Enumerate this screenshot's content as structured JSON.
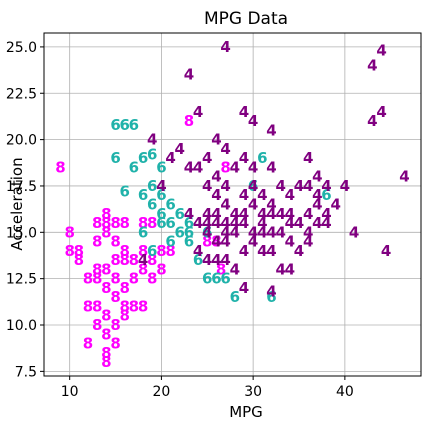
{
  "chart_data": {
    "type": "scatter",
    "title": "MPG Data",
    "xlabel": "MPG",
    "ylabel": "Acceleration",
    "xlim": [
      7.2,
      48.3
    ],
    "ylim": [
      7.25,
      25.75
    ],
    "xticks": [
      10,
      20,
      30,
      40
    ],
    "yticks": [
      7.5,
      10.0,
      12.5,
      15.0,
      17.5,
      20.0,
      22.5,
      25.0
    ],
    "xtick_labels": [
      "10",
      "20",
      "30",
      "40"
    ],
    "ytick_labels": [
      "7.5",
      "10.0",
      "12.5",
      "15.0",
      "17.5",
      "20.0",
      "22.5",
      "25.0"
    ],
    "grid": true,
    "marker_style": "text labels showing cylinder count",
    "series": [
      {
        "label": "8",
        "color": "#ff00ff",
        "points": [
          [
            9.0,
            18.5
          ],
          [
            10.0,
            15.0
          ],
          [
            10.0,
            14.0
          ],
          [
            11.0,
            14.0
          ],
          [
            11.0,
            13.5
          ],
          [
            12.0,
            12.5
          ],
          [
            12.0,
            11.0
          ],
          [
            12.0,
            9.0
          ],
          [
            13.0,
            15.5
          ],
          [
            13.0,
            14.5
          ],
          [
            13.0,
            13.0
          ],
          [
            13.0,
            12.5
          ],
          [
            13.0,
            11.0
          ],
          [
            13.0,
            10.0
          ],
          [
            14.0,
            16.0
          ],
          [
            14.0,
            15.5
          ],
          [
            14.0,
            15.0
          ],
          [
            14.0,
            13.0
          ],
          [
            14.0,
            12.0
          ],
          [
            14.0,
            10.5
          ],
          [
            14.0,
            9.5
          ],
          [
            14.0,
            8.5
          ],
          [
            14.0,
            8.0
          ],
          [
            15.0,
            15.5
          ],
          [
            15.0,
            14.5
          ],
          [
            15.0,
            13.5
          ],
          [
            15.0,
            12.5
          ],
          [
            15.0,
            11.5
          ],
          [
            15.0,
            10.0
          ],
          [
            15.0,
            9.0
          ],
          [
            16.0,
            15.5
          ],
          [
            16.0,
            14.0
          ],
          [
            16.0,
            13.5
          ],
          [
            16.0,
            12.0
          ],
          [
            16.0,
            11.0
          ],
          [
            16.0,
            10.5
          ],
          [
            17.0,
            13.5
          ],
          [
            17.0,
            12.5
          ],
          [
            17.0,
            11.0
          ],
          [
            18.0,
            15.5
          ],
          [
            18.0,
            14.0
          ],
          [
            18.0,
            13.0
          ],
          [
            18.0,
            11.0
          ],
          [
            19.0,
            15.5
          ],
          [
            19.0,
            13.5
          ],
          [
            19.0,
            12.5
          ],
          [
            20.0,
            14.0
          ],
          [
            20.0,
            13.0
          ],
          [
            21.0,
            14.0
          ],
          [
            23.0,
            21.0
          ],
          [
            25.0,
            14.5
          ],
          [
            26.0,
            14.5
          ],
          [
            26.5,
            13.0
          ],
          [
            27.0,
            18.5
          ]
        ]
      },
      {
        "label": "6",
        "color": "#20b2aa",
        "points": [
          [
            15.0,
            20.8
          ],
          [
            16.0,
            20.8
          ],
          [
            17.0,
            20.8
          ],
          [
            15.0,
            19.0
          ],
          [
            16.0,
            17.2
          ],
          [
            17.0,
            18.5
          ],
          [
            18.0,
            19.0
          ],
          [
            18.0,
            17.0
          ],
          [
            18.0,
            15.0
          ],
          [
            19.0,
            19.2
          ],
          [
            19.0,
            17.5
          ],
          [
            19.0,
            16.5
          ],
          [
            19.0,
            14.0
          ],
          [
            20.0,
            18.5
          ],
          [
            20.0,
            17.0
          ],
          [
            20.0,
            16.0
          ],
          [
            20.0,
            15.5
          ],
          [
            21.0,
            16.5
          ],
          [
            21.0,
            15.5
          ],
          [
            21.0,
            14.5
          ],
          [
            22.0,
            16.0
          ],
          [
            22.0,
            15.0
          ],
          [
            23.0,
            15.5
          ],
          [
            23.0,
            14.5
          ],
          [
            23.0,
            15.0
          ],
          [
            24.0,
            13.5
          ],
          [
            25.0,
            15.0
          ],
          [
            25.0,
            12.5
          ],
          [
            26.0,
            12.5
          ],
          [
            27.0,
            12.5
          ],
          [
            28.0,
            11.5
          ],
          [
            30.0,
            17.5
          ],
          [
            31.0,
            19.0
          ],
          [
            32.0,
            11.5
          ],
          [
            38.0,
            17.0
          ]
        ]
      },
      {
        "label": "4",
        "color": "#800080",
        "points": [
          [
            18.0,
            13.5
          ],
          [
            19.0,
            20.0
          ],
          [
            20.0,
            17.5
          ],
          [
            21.0,
            19.0
          ],
          [
            22.0,
            19.5
          ],
          [
            23.0,
            23.5
          ],
          [
            23.0,
            18.5
          ],
          [
            23.0,
            16.0
          ],
          [
            24.0,
            21.5
          ],
          [
            24.0,
            18.5
          ],
          [
            24.0,
            15.5
          ],
          [
            24.0,
            14.0
          ],
          [
            25.0,
            19.0
          ],
          [
            25.0,
            17.5
          ],
          [
            25.0,
            16.0
          ],
          [
            25.0,
            15.5
          ],
          [
            25.0,
            15.0
          ],
          [
            25.0,
            13.5
          ],
          [
            26.0,
            20.0
          ],
          [
            26.0,
            18.0
          ],
          [
            26.0,
            17.0
          ],
          [
            26.0,
            16.0
          ],
          [
            26.0,
            15.5
          ],
          [
            26.0,
            14.5
          ],
          [
            26.0,
            13.5
          ],
          [
            27.0,
            25.0
          ],
          [
            27.0,
            19.5
          ],
          [
            27.0,
            17.5
          ],
          [
            27.0,
            16.5
          ],
          [
            27.0,
            15.5
          ],
          [
            27.0,
            15.0
          ],
          [
            27.0,
            14.5
          ],
          [
            27.0,
            13.5
          ],
          [
            28.0,
            18.5
          ],
          [
            28.0,
            16.0
          ],
          [
            28.0,
            15.5
          ],
          [
            28.0,
            15.0
          ],
          [
            28.0,
            13.0
          ],
          [
            29.0,
            21.5
          ],
          [
            29.0,
            19.0
          ],
          [
            29.0,
            17.0
          ],
          [
            29.0,
            16.0
          ],
          [
            29.0,
            15.5
          ],
          [
            29.0,
            14.0
          ],
          [
            29.0,
            12.0
          ],
          [
            30.0,
            21.0
          ],
          [
            30.0,
            18.5
          ],
          [
            30.0,
            17.5
          ],
          [
            30.0,
            16.5
          ],
          [
            30.0,
            15.0
          ],
          [
            30.0,
            14.5
          ],
          [
            31.0,
            17.0
          ],
          [
            31.0,
            16.0
          ],
          [
            31.0,
            15.5
          ],
          [
            31.0,
            15.0
          ],
          [
            31.0,
            14.0
          ],
          [
            32.0,
            20.5
          ],
          [
            32.0,
            18.5
          ],
          [
            32.0,
            16.5
          ],
          [
            32.0,
            16.0
          ],
          [
            32.0,
            15.0
          ],
          [
            32.0,
            14.0
          ],
          [
            32.0,
            11.8
          ],
          [
            33.0,
            17.5
          ],
          [
            33.0,
            16.0
          ],
          [
            33.0,
            15.0
          ],
          [
            33.0,
            13.0
          ],
          [
            34.0,
            17.0
          ],
          [
            34.0,
            16.0
          ],
          [
            34.0,
            15.5
          ],
          [
            34.0,
            14.5
          ],
          [
            34.0,
            13.0
          ],
          [
            35.0,
            17.5
          ],
          [
            35.0,
            15.5
          ],
          [
            35.0,
            14.0
          ],
          [
            36.0,
            19.0
          ],
          [
            36.0,
            17.5
          ],
          [
            36.0,
            16.0
          ],
          [
            36.0,
            15.0
          ],
          [
            36.0,
            14.5
          ],
          [
            37.0,
            18.0
          ],
          [
            37.0,
            17.0
          ],
          [
            37.0,
            16.5
          ],
          [
            37.0,
            15.5
          ],
          [
            38.0,
            17.5
          ],
          [
            38.0,
            16.0
          ],
          [
            38.0,
            15.5
          ],
          [
            39.0,
            16.5
          ],
          [
            40.0,
            17.5
          ],
          [
            41.0,
            15.0
          ],
          [
            43.0,
            24.0
          ],
          [
            43.0,
            21.0
          ],
          [
            44.0,
            24.8
          ],
          [
            44.0,
            21.5
          ],
          [
            44.5,
            14.0
          ],
          [
            46.5,
            18.0
          ]
        ]
      }
    ]
  }
}
